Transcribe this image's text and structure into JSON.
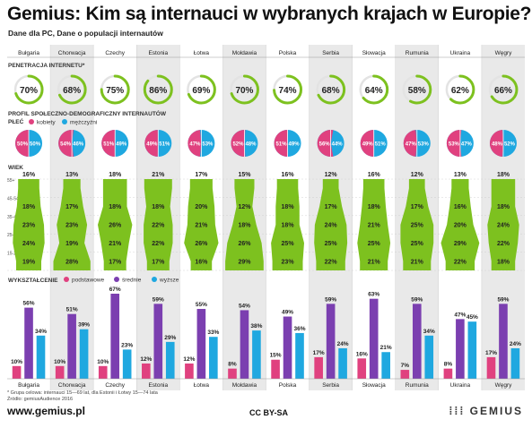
{
  "header": {
    "title": "Gemius: Kim są internauci w wybranych krajach w Europie?",
    "subtitle": "Dane dla PC, Dane o populacji internautów"
  },
  "sections": {
    "penetration": "PENETRACJA INTERNETU*",
    "profile": "PROFIL SPOŁECZNO-DEMOGRAFICZNY INTERNAUTÓW",
    "gender": "PŁEĆ",
    "age": "WIEK",
    "education": "WYKSZTAŁCENIE"
  },
  "footer": {
    "footnote_1": "* Grupa celowa: internauci 15—69 lat, dla Estonii i Łotwy 15—74 lata",
    "footnote_2": "Źródło: gemiusAudience 2016",
    "brand": "www.gemius.pl",
    "license": "CC BY-SA",
    "logo": "GEMIUS"
  },
  "colors": {
    "green": "#7dc11f",
    "pink": "#e0417f",
    "blue": "#1fa8e0",
    "purple": "#7b3fb0",
    "shade": "#e9e9e9"
  },
  "chart_data": [
    {
      "type": "table",
      "title": "PENETRACJA INTERNETU*",
      "categories": [
        "Bułgaria",
        "Chorwacja",
        "Czechy",
        "Estonia",
        "Łotwa",
        "Mołdawia",
        "Polska",
        "Serbia",
        "Słowacja",
        "Rumunia",
        "Ukraina",
        "Węgry"
      ],
      "values": [
        70,
        68,
        75,
        86,
        69,
        70,
        74,
        68,
        64,
        58,
        62,
        66
      ],
      "value_labels": [
        "70%",
        "68%",
        "75%",
        "86%",
        "69%",
        "70%",
        "74%",
        "68%",
        "64%",
        "58%",
        "62%",
        "66%"
      ]
    },
    {
      "type": "pie",
      "title": "PŁEĆ",
      "categories": [
        "Bułgaria",
        "Chorwacja",
        "Czechy",
        "Estonia",
        "Łotwa",
        "Mołdawia",
        "Polska",
        "Serbia",
        "Słowacja",
        "Rumunia",
        "Ukraina",
        "Węgry"
      ],
      "series": [
        {
          "name": "kobiety",
          "values": [
            50,
            54,
            51,
            49,
            47,
            52,
            51,
            56,
            49,
            47,
            53,
            48
          ],
          "labels": [
            "50%",
            "54%",
            "51%",
            "49%",
            "47%",
            "52%",
            "51%",
            "56%",
            "49%",
            "47%",
            "53%",
            "48%"
          ]
        },
        {
          "name": "mężczyźni",
          "values": [
            50,
            46,
            49,
            51,
            53,
            48,
            49,
            44,
            51,
            53,
            47,
            52
          ],
          "labels": [
            "50%",
            "46%",
            "49%",
            "51%",
            "53%",
            "48%",
            "49%",
            "44%",
            "51%",
            "53%",
            "47%",
            "52%"
          ]
        }
      ]
    },
    {
      "type": "area",
      "title": "WIEK",
      "age_groups": [
        "55+",
        "45-54",
        "35-44",
        "25-34",
        "15-24"
      ],
      "categories": [
        "Bułgaria",
        "Chorwacja",
        "Czechy",
        "Estonia",
        "Łotwa",
        "Mołdawia",
        "Polska",
        "Serbia",
        "Słowacja",
        "Rumunia",
        "Ukraina",
        "Węgry"
      ],
      "values": [
        [
          16,
          18,
          23,
          24,
          19
        ],
        [
          13,
          17,
          23,
          19,
          28
        ],
        [
          18,
          18,
          26,
          21,
          17
        ],
        [
          21,
          18,
          22,
          22,
          17
        ],
        [
          17,
          20,
          21,
          26,
          16
        ],
        [
          15,
          12,
          18,
          26,
          29
        ],
        [
          16,
          18,
          18,
          25,
          23
        ],
        [
          12,
          17,
          24,
          25,
          22
        ],
        [
          16,
          18,
          21,
          25,
          21
        ],
        [
          12,
          17,
          25,
          25,
          21
        ],
        [
          13,
          16,
          20,
          29,
          22
        ],
        [
          18,
          18,
          24,
          22,
          18
        ]
      ],
      "labels": [
        [
          "16%",
          "18%",
          "23%",
          "24%",
          "19%"
        ],
        [
          "13%",
          "17%",
          "23%",
          "19%",
          "28%"
        ],
        [
          "18%",
          "18%",
          "26%",
          "21%",
          "17%"
        ],
        [
          "21%",
          "18%",
          "22%",
          "22%",
          "17%"
        ],
        [
          "17%",
          "20%",
          "21%",
          "26%",
          "16%"
        ],
        [
          "15%",
          "12%",
          "18%",
          "26%",
          "29%"
        ],
        [
          "16%",
          "18%",
          "18%",
          "25%",
          "23%"
        ],
        [
          "12%",
          "17%",
          "24%",
          "25%",
          "22%"
        ],
        [
          "16%",
          "18%",
          "21%",
          "25%",
          "21%"
        ],
        [
          "12%",
          "17%",
          "25%",
          "25%",
          "21%"
        ],
        [
          "13%",
          "16%",
          "20%",
          "29%",
          "22%"
        ],
        [
          "18%",
          "18%",
          "24%",
          "22%",
          "18%"
        ]
      ]
    },
    {
      "type": "bar",
      "title": "WYKSZTAŁCENIE",
      "categories": [
        "Bułgaria",
        "Chorwacja",
        "Czechy",
        "Estonia",
        "Łotwa",
        "Mołdawia",
        "Polska",
        "Serbia",
        "Słowacja",
        "Rumunia",
        "Ukraina",
        "Węgry"
      ],
      "series": [
        {
          "name": "podstawowe",
          "values": [
            10,
            10,
            10,
            12,
            12,
            8,
            15,
            17,
            16,
            7,
            8,
            17
          ],
          "labels": [
            "10%",
            "10%",
            "10%",
            "12%",
            "12%",
            "8%",
            "15%",
            "17%",
            "16%",
            "7%",
            "8%",
            "17%"
          ]
        },
        {
          "name": "średnie",
          "values": [
            56,
            51,
            67,
            59,
            55,
            54,
            49,
            59,
            63,
            59,
            47,
            59
          ],
          "labels": [
            "56%",
            "51%",
            "67%",
            "59%",
            "55%",
            "54%",
            "49%",
            "59%",
            "63%",
            "59%",
            "47%",
            "59%"
          ]
        },
        {
          "name": "wyższe",
          "values": [
            34,
            39,
            23,
            29,
            33,
            38,
            36,
            24,
            21,
            34,
            45,
            24
          ],
          "labels": [
            "34%",
            "39%",
            "23%",
            "29%",
            "33%",
            "38%",
            "36%",
            "24%",
            "21%",
            "34%",
            "45%",
            "24%"
          ]
        }
      ]
    }
  ]
}
